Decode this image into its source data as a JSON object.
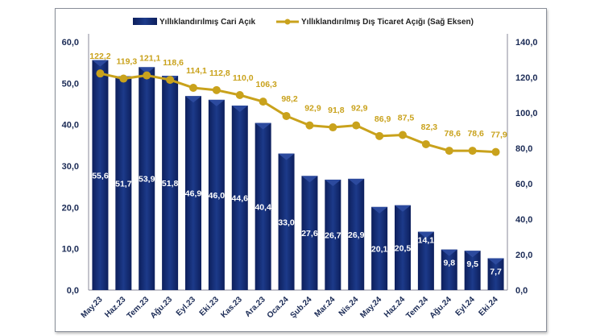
{
  "chart_data": {
    "type": "bar+line",
    "categories": [
      "May.23",
      "Haz.23",
      "Tem.23",
      "Ağu.23",
      "Eyl.23",
      "Eki.23",
      "Kas.23",
      "Ara.23",
      "Oca.24",
      "Şub.24",
      "Mar.24",
      "Nis.24",
      "May.24",
      "Haz.24",
      "Tem.24",
      "Ağu.24",
      "Eyl.24",
      "Eki.24"
    ],
    "series": [
      {
        "name": "Yıllıklandırılmış Cari Açık",
        "type": "bar",
        "axis": "left",
        "color": "#13286b",
        "values": [
          55.6,
          51.7,
          53.9,
          51.8,
          46.9,
          46.0,
          44.6,
          40.4,
          33.0,
          27.6,
          26.7,
          26.9,
          20.1,
          20.5,
          14.1,
          9.8,
          9.5,
          7.7
        ],
        "labels": [
          "55,6",
          "51,7",
          "53,9",
          "51,8",
          "46,9",
          "46,0",
          "44,6",
          "40,4",
          "33,0",
          "27,6",
          "26,7",
          "26,9",
          "20,1",
          "20,5",
          "14,1",
          "9,8",
          "9,5",
          "7,7"
        ]
      },
      {
        "name": "Yıllıklandırılmış Dış Ticaret Açığı (Sağ Eksen)",
        "type": "line",
        "axis": "right",
        "color": "#c9a21c",
        "values": [
          122.2,
          119.3,
          121.1,
          118.6,
          114.1,
          112.8,
          110.0,
          106.3,
          98.2,
          92.9,
          91.8,
          92.9,
          86.9,
          87.5,
          82.3,
          78.6,
          78.6,
          77.9
        ],
        "labels": [
          "122,2",
          "119,3",
          "121,1",
          "118,6",
          "114,1",
          "112,8",
          "110,0",
          "106,3",
          "98,2",
          "92,9",
          "91,8",
          "92,9",
          "86,9",
          "87,5",
          "82,3",
          "78,6",
          "78,6",
          "77,9"
        ]
      }
    ],
    "y_left": {
      "range": [
        0,
        60
      ],
      "ticks": [
        "0,0",
        "10,0",
        "20,0",
        "30,0",
        "40,0",
        "50,0",
        "60,0"
      ]
    },
    "y_right": {
      "range": [
        0,
        140
      ],
      "ticks": [
        "0,0",
        "20,0",
        "40,0",
        "60,0",
        "80,0",
        "100,0",
        "120,0",
        "140,0"
      ]
    },
    "grid": false,
    "legend": "top"
  }
}
